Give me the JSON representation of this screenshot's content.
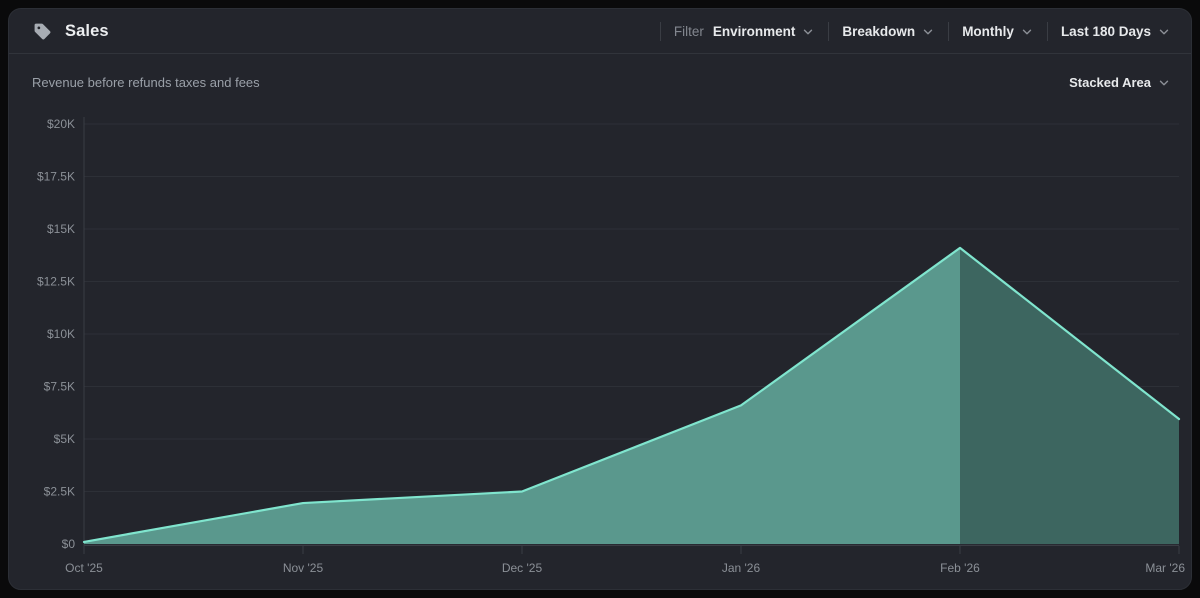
{
  "header": {
    "title": "Sales",
    "icon": "tag-icon",
    "filter_label": "Filter",
    "controls": [
      {
        "id": "environment",
        "label": "Environment",
        "has_filter_prefix": true
      },
      {
        "id": "breakdown",
        "label": "Breakdown"
      },
      {
        "id": "granularity",
        "label": "Monthly"
      },
      {
        "id": "date-range",
        "label": "Last 180 Days"
      }
    ]
  },
  "subheader": {
    "description": "Revenue before refunds taxes and fees",
    "chart_type_label": "Stacked Area"
  },
  "chart_data": {
    "type": "area",
    "variant": "stacked-area",
    "title": "Revenue before refunds taxes and fees",
    "x": [
      "Oct '25",
      "Nov '25",
      "Dec '25",
      "Jan '26",
      "Feb '26",
      "Mar '26"
    ],
    "series": [
      {
        "name": "Revenue",
        "values": [
          100,
          1950,
          2500,
          6600,
          14100,
          5950
        ]
      }
    ],
    "split_index": 4,
    "ylim": [
      0,
      20000
    ],
    "y_ticks": [
      {
        "label": "$0",
        "value": 0
      },
      {
        "label": "$2.5K",
        "value": 2500
      },
      {
        "label": "$5K",
        "value": 5000
      },
      {
        "label": "$7.5K",
        "value": 7500
      },
      {
        "label": "$10K",
        "value": 10000
      },
      {
        "label": "$12.5K",
        "value": 12500
      },
      {
        "label": "$15K",
        "value": 15000
      },
      {
        "label": "$17.5K",
        "value": 17500
      },
      {
        "label": "$20K",
        "value": 20000
      }
    ],
    "grid": true,
    "legend": false,
    "colors": {
      "area_past": "#5a988d",
      "area_current": "#3d6660",
      "line": "#80e5ce",
      "gridline": "#2d3037",
      "axis": "#3a3d44",
      "tick_label": "#8b9097"
    }
  }
}
